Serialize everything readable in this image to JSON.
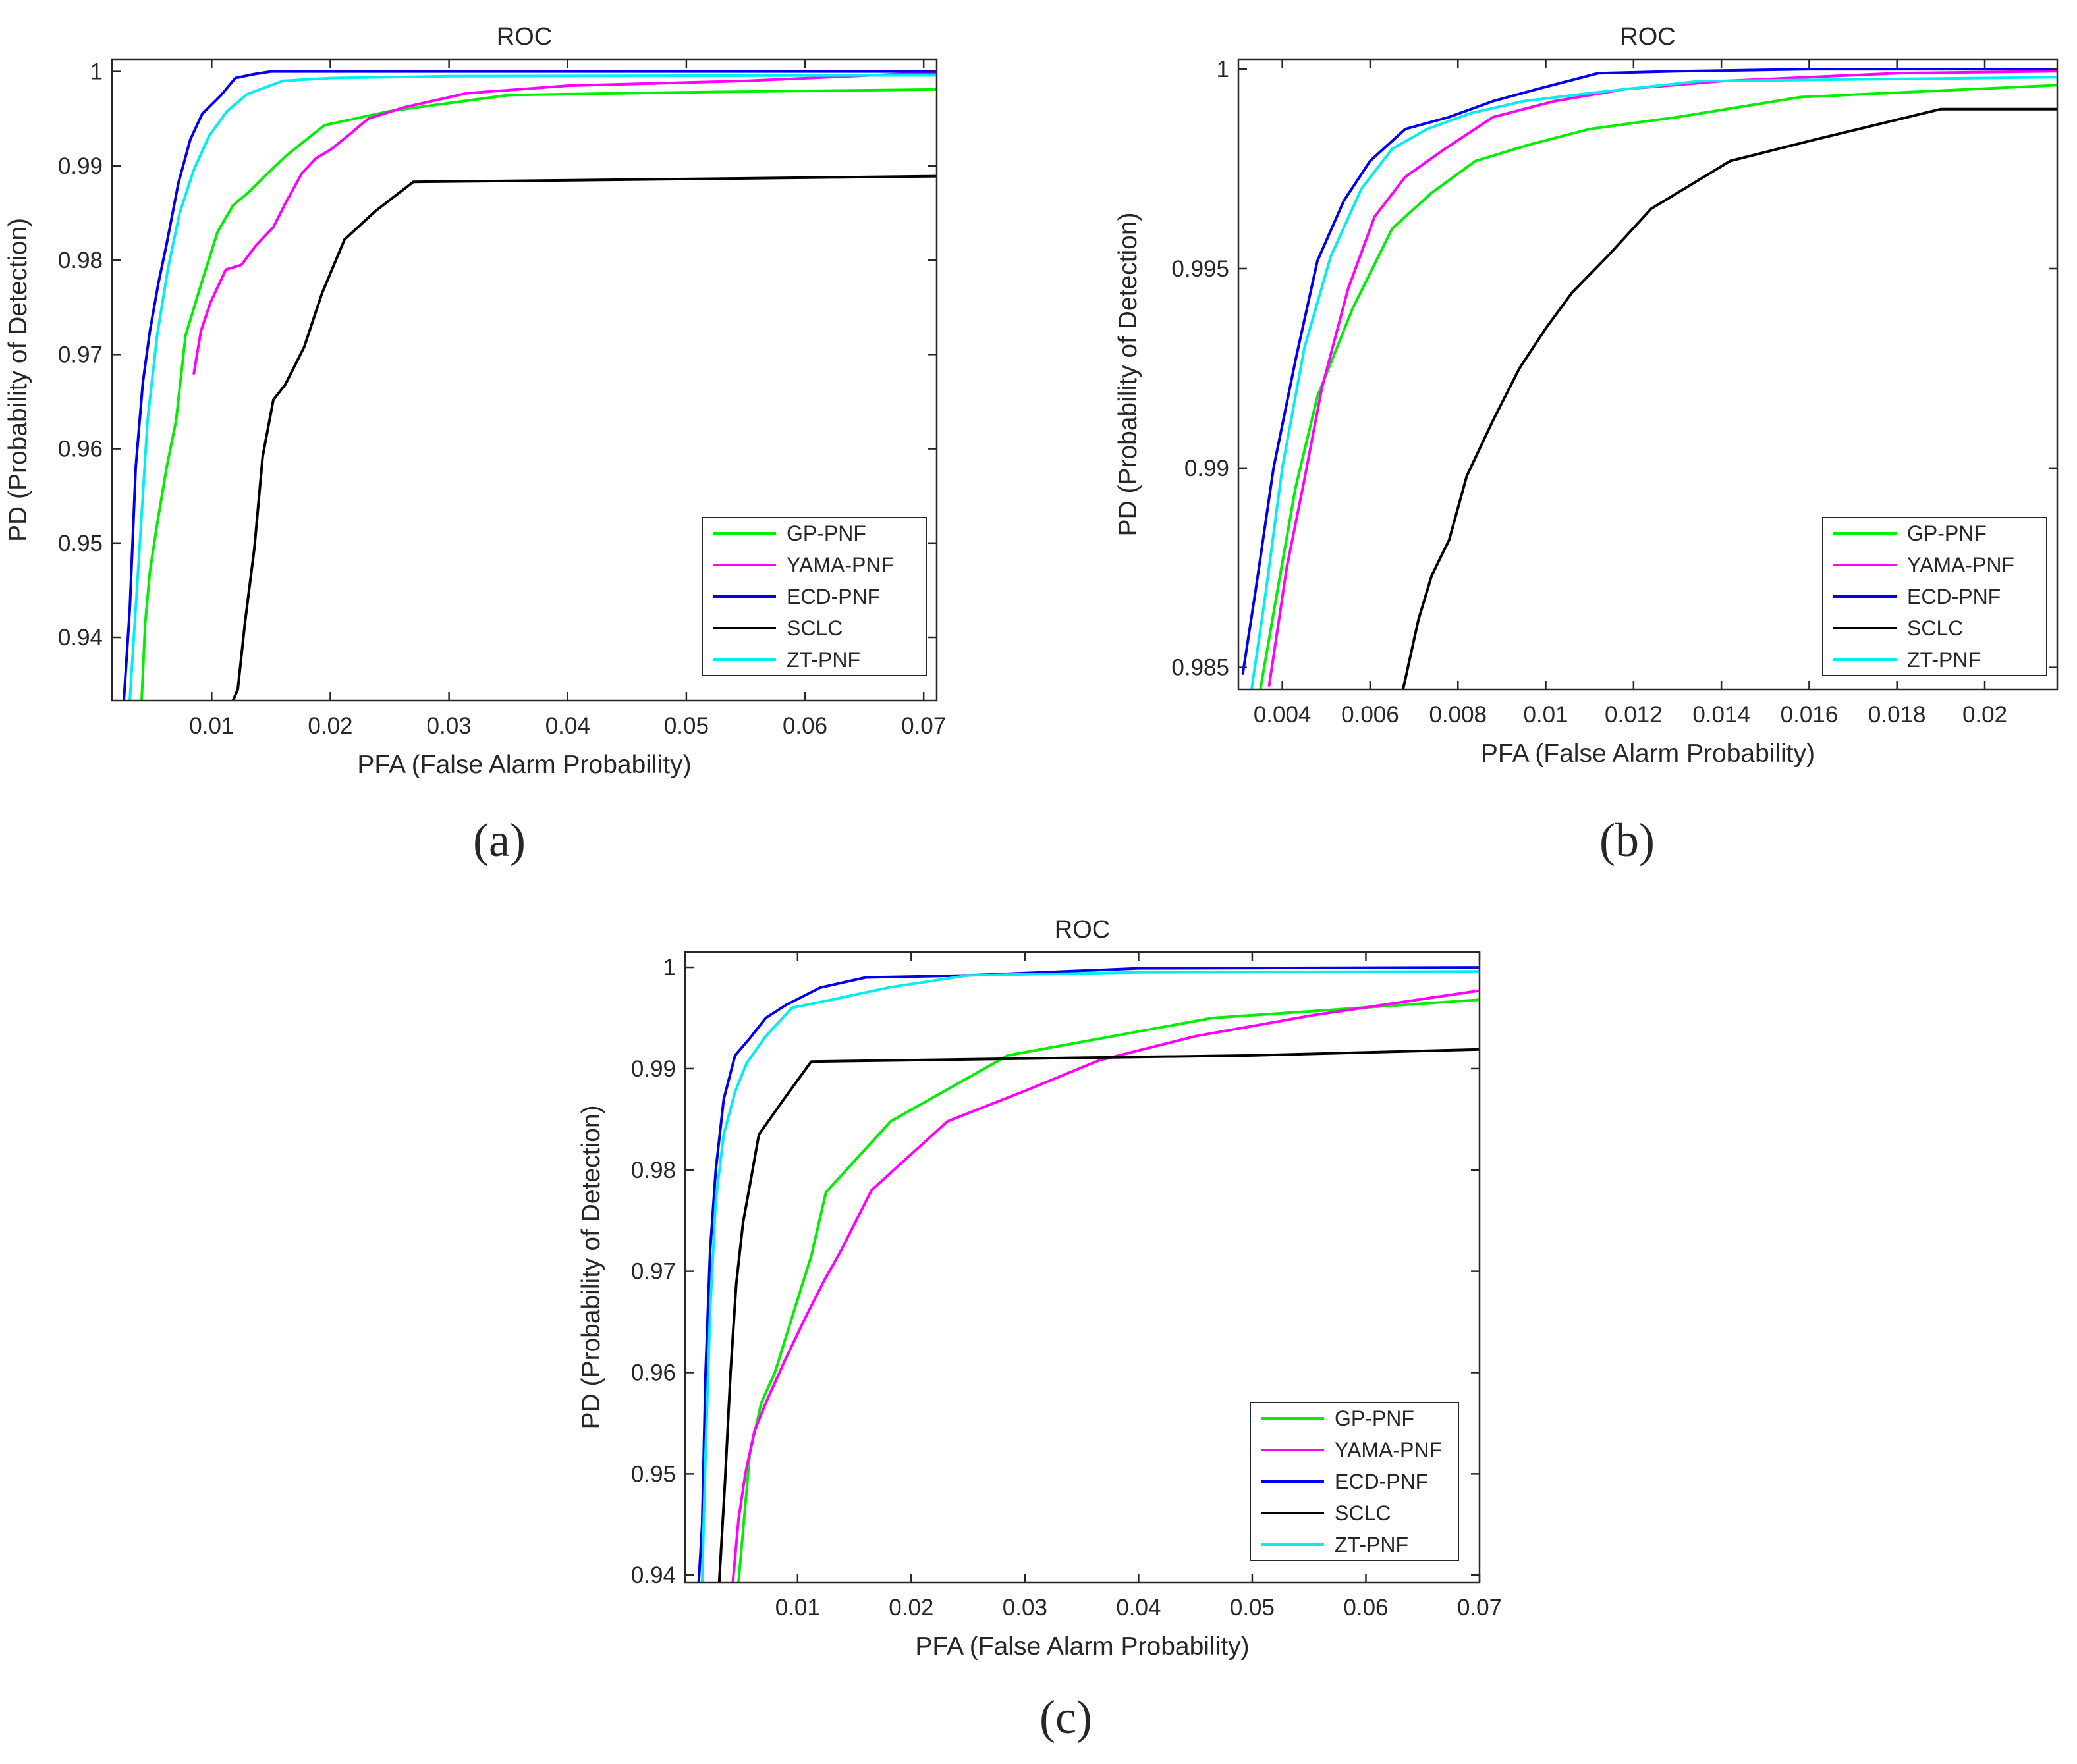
{
  "figure": {
    "captions": [
      "(a)",
      "(b)",
      "(c)"
    ]
  },
  "series_styles": [
    {
      "name": "GP-PNF",
      "color": "#00ee00"
    },
    {
      "name": "YAMA-PNF",
      "color": "#ff00ff"
    },
    {
      "name": "ECD-PNF",
      "color": "#0000ee"
    },
    {
      "name": "SCLC",
      "color": "#000000"
    },
    {
      "name": "ZT-PNF",
      "color": "#00eeee"
    }
  ],
  "chart_data": [
    {
      "type": "line",
      "panel": "(a)",
      "title": "ROC",
      "xlabel": "PFA (False Alarm Probability)",
      "ylabel": "PD (Probability of Detection)",
      "xlim": [
        0.0016,
        0.0711
      ],
      "ylim": [
        0.9333,
        1.0013
      ],
      "xticks": [
        0.01,
        0.02,
        0.03,
        0.04,
        0.05,
        0.06,
        0.07
      ],
      "xtick_labels": [
        "0.01",
        "0.02",
        "0.03",
        "0.04",
        "0.05",
        "0.06",
        "0.07"
      ],
      "yticks": [
        0.94,
        0.95,
        0.96,
        0.97,
        0.98,
        0.99,
        1.0
      ],
      "ytick_labels": [
        "0.94",
        "0.95",
        "0.96",
        "0.97",
        "0.98",
        "0.99",
        "1"
      ],
      "legend": [
        "GP-PNF",
        "YAMA-PNF",
        "ECD-PNF",
        "SCLC",
        "ZT-PNF"
      ],
      "legend_position": "bottom-right",
      "series": [
        {
          "name": "GP-PNF",
          "x": [
            0.0041,
            0.0044,
            0.0048,
            0.0054,
            0.0062,
            0.007,
            0.0078,
            0.009,
            0.0105,
            0.0118,
            0.0132,
            0.0148,
            0.0164,
            0.0195,
            0.025,
            0.035,
            0.05,
            0.0711
          ],
          "y": [
            0.9333,
            0.9415,
            0.947,
            0.952,
            0.958,
            0.963,
            0.972,
            0.977,
            0.983,
            0.9858,
            0.9873,
            0.9893,
            0.9912,
            0.9943,
            0.9958,
            0.9975,
            0.9978,
            0.9981
          ]
        },
        {
          "name": "YAMA-PNF",
          "x": [
            0.0085,
            0.0091,
            0.0099,
            0.0112,
            0.0125,
            0.0137,
            0.0152,
            0.0162,
            0.0176,
            0.0188,
            0.02,
            0.0215,
            0.0232,
            0.0262,
            0.0315,
            0.04,
            0.055,
            0.0711
          ],
          "y": [
            0.968,
            0.9725,
            0.9755,
            0.979,
            0.9795,
            0.9815,
            0.9835,
            0.986,
            0.9892,
            0.9908,
            0.9917,
            0.9932,
            0.995,
            0.9962,
            0.9977,
            0.9985,
            0.999,
            0.9999
          ]
        },
        {
          "name": "ECD-PNF",
          "x": [
            0.0026,
            0.0031,
            0.0036,
            0.0042,
            0.0048,
            0.0055,
            0.0062,
            0.0072,
            0.0082,
            0.0092,
            0.0108,
            0.012,
            0.0135,
            0.015,
            0.03,
            0.0711
          ],
          "y": [
            0.9333,
            0.943,
            0.958,
            0.967,
            0.9725,
            0.9775,
            0.9817,
            0.9882,
            0.9928,
            0.9955,
            0.9975,
            0.9993,
            0.9997,
            1.0,
            1.0,
            1.0
          ]
        },
        {
          "name": "SCLC",
          "x": [
            0.0118,
            0.0122,
            0.0128,
            0.0136,
            0.0143,
            0.0152,
            0.0162,
            0.0178,
            0.0193,
            0.0212,
            0.0238,
            0.027,
            0.035,
            0.05,
            0.0711
          ],
          "y": [
            0.9333,
            0.9345,
            0.9415,
            0.9495,
            0.9592,
            0.9652,
            0.9668,
            0.9708,
            0.9765,
            0.9822,
            0.9852,
            0.9883,
            0.9884,
            0.9886,
            0.9889
          ]
        },
        {
          "name": "ZT-PNF",
          "x": [
            0.0031,
            0.0038,
            0.0046,
            0.0054,
            0.0063,
            0.0073,
            0.0085,
            0.0098,
            0.0113,
            0.013,
            0.016,
            0.02,
            0.03,
            0.0711
          ],
          "y": [
            0.9333,
            0.947,
            0.963,
            0.972,
            0.979,
            0.985,
            0.9896,
            0.9932,
            0.9958,
            0.9976,
            0.999,
            0.9993,
            0.9995,
            0.9996
          ]
        }
      ]
    },
    {
      "type": "line",
      "panel": "(b)",
      "title": "ROC",
      "xlabel": "PFA (False Alarm Probability)",
      "ylabel": "PD (Probability of Detection)",
      "xlim": [
        0.003,
        0.02165
      ],
      "ylim": [
        0.98445,
        1.00025
      ],
      "xticks": [
        0.004,
        0.006,
        0.008,
        0.01,
        0.012,
        0.014,
        0.016,
        0.018,
        0.02
      ],
      "xtick_labels": [
        "0.004",
        "0.006",
        "0.008",
        "0.01",
        "0.012",
        "0.014",
        "0.016",
        "0.018",
        "0.02"
      ],
      "yticks": [
        0.985,
        0.99,
        0.995,
        1.0
      ],
      "ytick_labels": [
        "0.985",
        "0.99",
        "0.995",
        "1"
      ],
      "legend": [
        "GP-PNF",
        "YAMA-PNF",
        "ECD-PNF",
        "SCLC",
        "ZT-PNF"
      ],
      "legend_position": "bottom-right",
      "series": [
        {
          "name": "GP-PNF",
          "x": [
            0.0035,
            0.0039,
            0.0043,
            0.0048,
            0.0056,
            0.0065,
            0.0074,
            0.0084,
            0.0096,
            0.011,
            0.013,
            0.0158,
            0.02165
          ],
          "y": [
            0.98445,
            0.987,
            0.9895,
            0.9918,
            0.994,
            0.996,
            0.9969,
            0.9977,
            0.9981,
            0.9985,
            0.9988,
            0.9993,
            0.9996
          ]
        },
        {
          "name": "YAMA-PNF",
          "x": [
            0.0037,
            0.0041,
            0.0045,
            0.0049,
            0.0055,
            0.0061,
            0.0068,
            0.0077,
            0.0088,
            0.0102,
            0.0118,
            0.014,
            0.018,
            0.02165
          ],
          "y": [
            0.98455,
            0.9875,
            0.9897,
            0.992,
            0.9945,
            0.9963,
            0.9973,
            0.998,
            0.9988,
            0.9992,
            0.9995,
            0.9997,
            0.9999,
            0.99995
          ]
        },
        {
          "name": "ECD-PNF",
          "x": [
            0.0031,
            0.0034,
            0.0038,
            0.0043,
            0.0048,
            0.0054,
            0.006,
            0.0068,
            0.0078,
            0.0088,
            0.0098,
            0.0112,
            0.013,
            0.016,
            0.02165
          ],
          "y": [
            0.98485,
            0.987,
            0.99,
            0.9927,
            0.9952,
            0.9967,
            0.9977,
            0.9985,
            0.9988,
            0.9992,
            0.9995,
            0.9999,
            0.99995,
            1.0,
            1.0
          ]
        },
        {
          "name": "SCLC",
          "x": [
            0.00675,
            0.0071,
            0.0074,
            0.0078,
            0.0082,
            0.0088,
            0.0094,
            0.01,
            0.0106,
            0.0114,
            0.0124,
            0.0142,
            0.016,
            0.019,
            0.02165
          ],
          "y": [
            0.98445,
            0.9862,
            0.9873,
            0.9882,
            0.9898,
            0.9912,
            0.9925,
            0.9935,
            0.9944,
            0.9953,
            0.9965,
            0.9977,
            0.9982,
            0.999,
            0.999
          ]
        },
        {
          "name": "ZT-PNF",
          "x": [
            0.0033,
            0.0036,
            0.004,
            0.0045,
            0.0051,
            0.0058,
            0.0065,
            0.0073,
            0.0083,
            0.0095,
            0.011,
            0.0135,
            0.02165
          ],
          "y": [
            0.98445,
            0.9867,
            0.99,
            0.993,
            0.9953,
            0.997,
            0.998,
            0.9985,
            0.9989,
            0.9992,
            0.9994,
            0.9997,
            0.9998
          ]
        }
      ]
    },
    {
      "type": "line",
      "panel": "(c)",
      "title": "ROC",
      "xlabel": "PFA (False Alarm Probability)",
      "ylabel": "PD (Probability of Detection)",
      "xlim": [
        0.0001,
        0.07
      ],
      "ylim": [
        0.9393,
        1.0015
      ],
      "xticks": [
        0.01,
        0.02,
        0.03,
        0.04,
        0.05,
        0.06,
        0.07
      ],
      "xtick_labels": [
        "0.01",
        "0.02",
        "0.03",
        "0.04",
        "0.05",
        "0.06",
        "0.07"
      ],
      "yticks": [
        0.94,
        0.95,
        0.96,
        0.97,
        0.98,
        0.99,
        1.0
      ],
      "ytick_labels": [
        "0.94",
        "0.95",
        "0.96",
        "0.97",
        "0.98",
        "0.99",
        "1"
      ],
      "legend": [
        "GP-PNF",
        "YAMA-PNF",
        "ECD-PNF",
        "SCLC",
        "ZT-PNF"
      ],
      "legend_position": "bottom-right",
      "series": [
        {
          "name": "GP-PNF",
          "x": [
            0.0048,
            0.0058,
            0.0068,
            0.008,
            0.0098,
            0.0112,
            0.0125,
            0.0182,
            0.0285,
            0.0465,
            0.07
          ],
          "y": [
            0.9393,
            0.952,
            0.957,
            0.96,
            0.9665,
            0.9715,
            0.9778,
            0.9848,
            0.9913,
            0.995,
            0.9968
          ]
        },
        {
          "name": "YAMA-PNF",
          "x": [
            0.0043,
            0.0048,
            0.0054,
            0.0062,
            0.0072,
            0.0088,
            0.0105,
            0.0123,
            0.0138,
            0.0165,
            0.0232,
            0.03,
            0.0365,
            0.045,
            0.0555,
            0.07
          ],
          "y": [
            0.9393,
            0.9455,
            0.95,
            0.9542,
            0.957,
            0.961,
            0.965,
            0.969,
            0.972,
            0.978,
            0.9848,
            0.9878,
            0.9908,
            0.9932,
            0.9953,
            0.9977
          ]
        },
        {
          "name": "ECD-PNF",
          "x": [
            0.0013,
            0.0016,
            0.0019,
            0.0023,
            0.0028,
            0.0035,
            0.0045,
            0.0058,
            0.0072,
            0.009,
            0.012,
            0.016,
            0.025,
            0.04,
            0.07
          ],
          "y": [
            0.9393,
            0.945,
            0.96,
            0.972,
            0.98,
            0.987,
            0.9913,
            0.993,
            0.995,
            0.9963,
            0.998,
            0.999,
            0.9992,
            0.9999,
            1.0
          ]
        },
        {
          "name": "SCLC",
          "x": [
            0.0031,
            0.0036,
            0.0041,
            0.0046,
            0.0052,
            0.0058,
            0.0066,
            0.0088,
            0.0112,
            0.03,
            0.05,
            0.07
          ],
          "y": [
            0.9393,
            0.949,
            0.96,
            0.9687,
            0.9748,
            0.9785,
            0.9835,
            0.987,
            0.9907,
            0.991,
            0.9913,
            0.9919
          ]
        },
        {
          "name": "ZT-PNF",
          "x": [
            0.0016,
            0.0019,
            0.0023,
            0.0028,
            0.0035,
            0.0045,
            0.0055,
            0.0072,
            0.0095,
            0.013,
            0.018,
            0.025,
            0.04,
            0.07
          ],
          "y": [
            0.9393,
            0.952,
            0.966,
            0.977,
            0.9835,
            0.9877,
            0.9905,
            0.9932,
            0.996,
            0.9968,
            0.998,
            0.9992,
            0.9995,
            0.9996
          ]
        }
      ]
    }
  ]
}
